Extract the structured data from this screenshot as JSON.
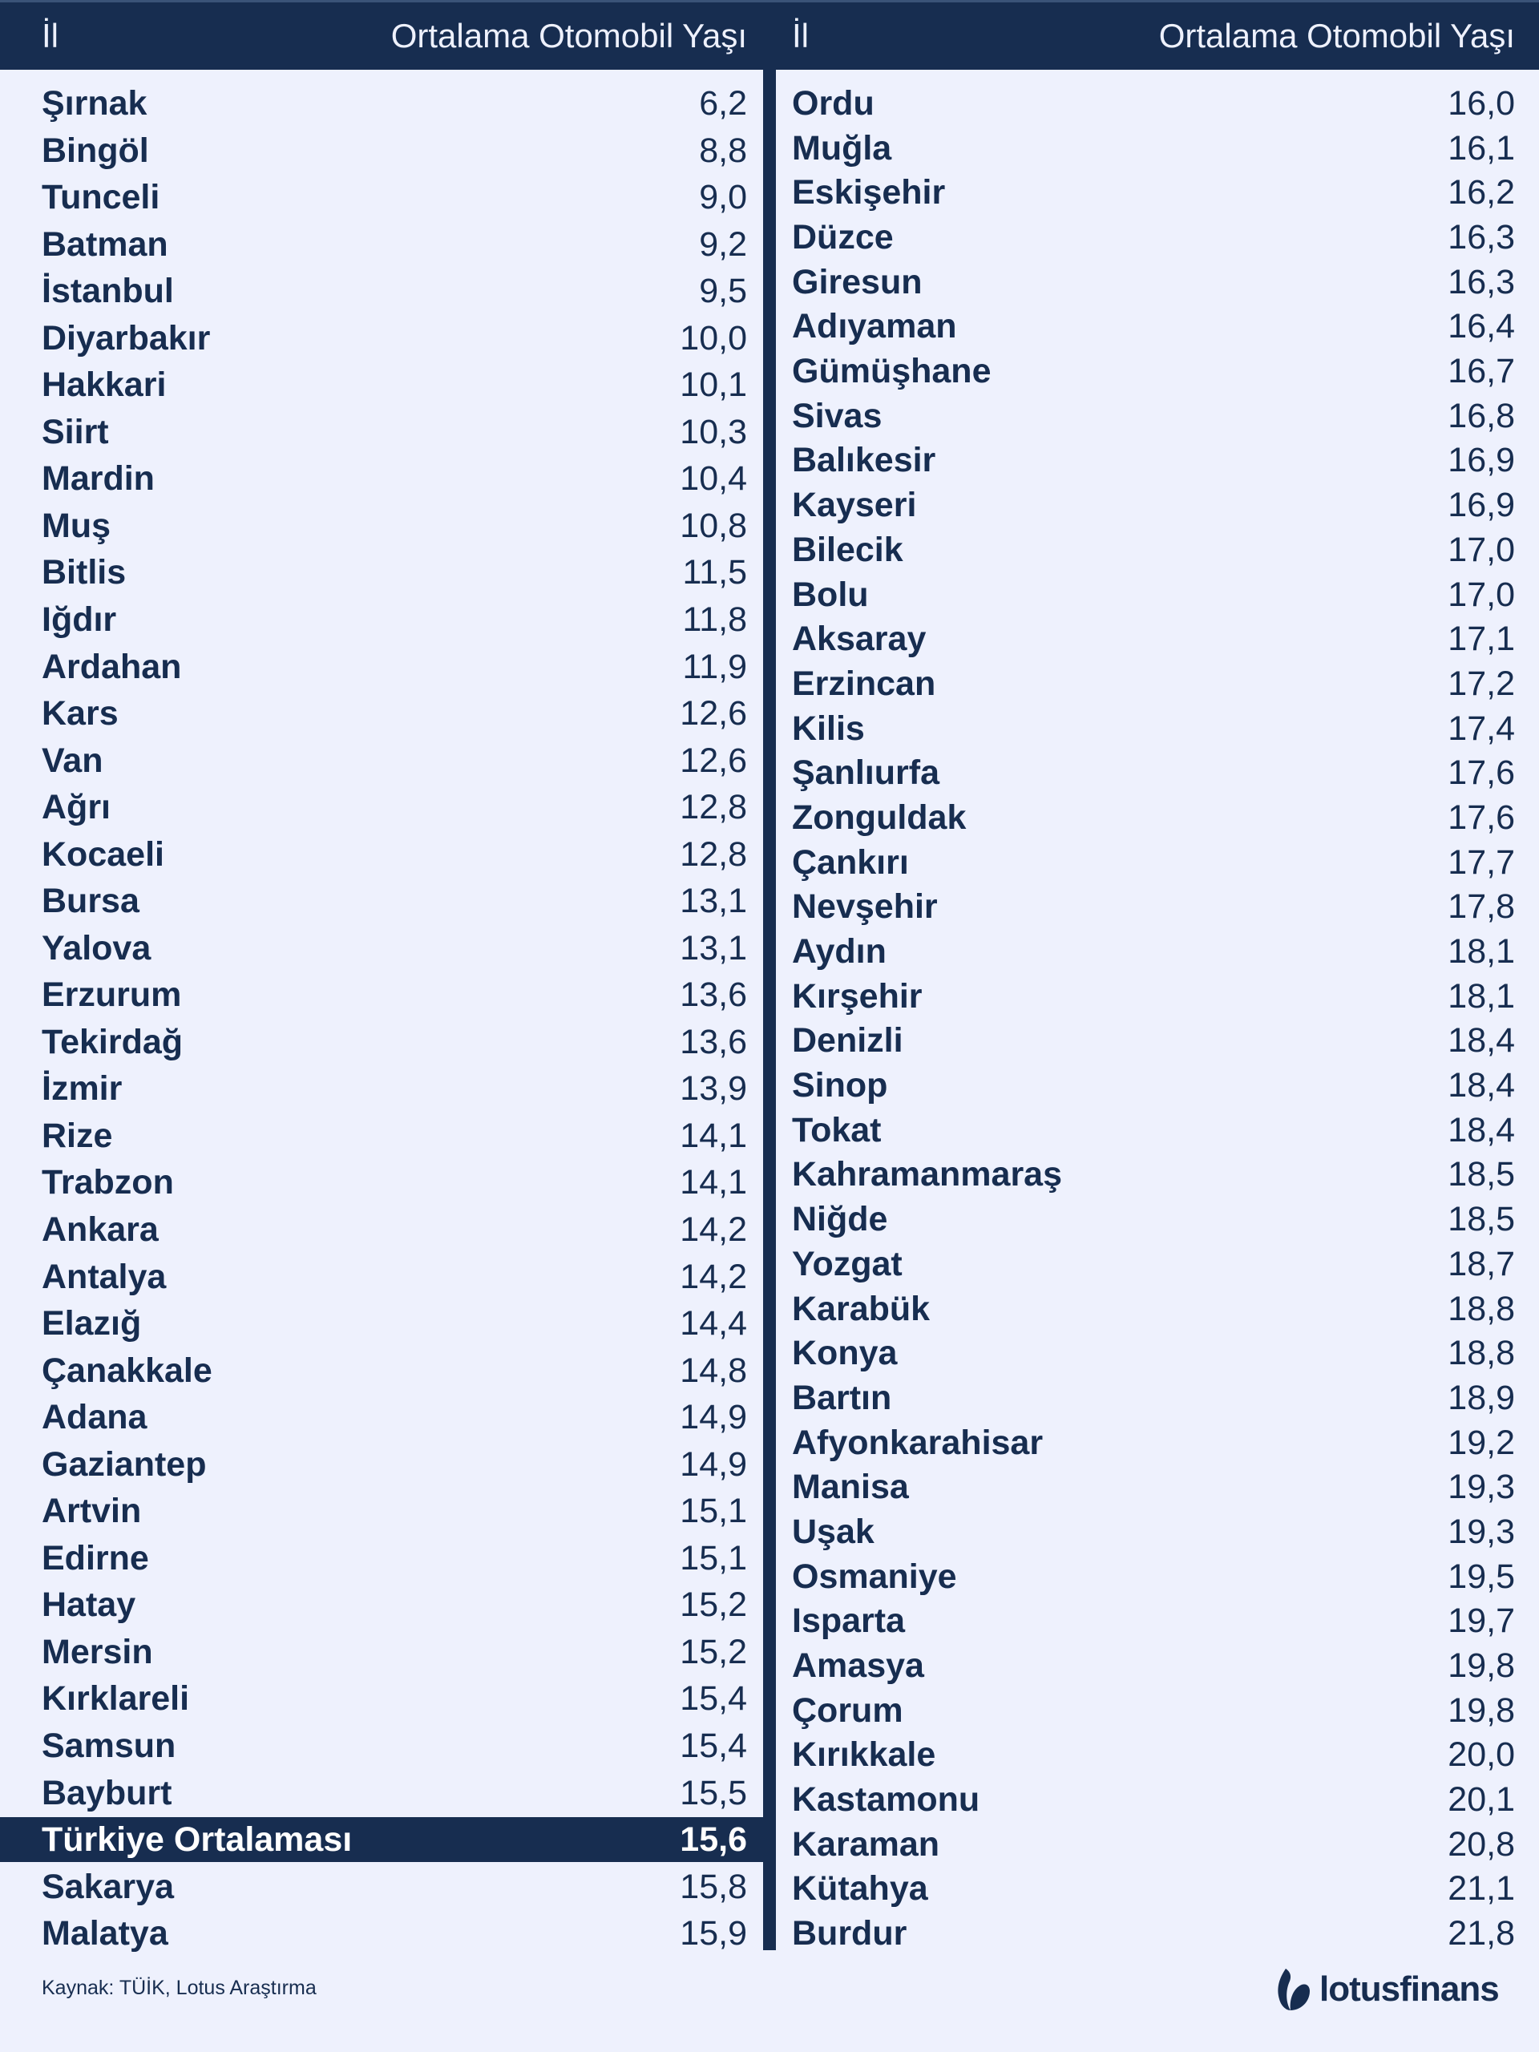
{
  "header": {
    "col_province": "İl",
    "col_value": "Ortalama Otomobil Yaşı"
  },
  "left_rows": [
    {
      "name": "Şırnak",
      "value": "6,2"
    },
    {
      "name": "Bingöl",
      "value": "8,8"
    },
    {
      "name": "Tunceli",
      "value": "9,0"
    },
    {
      "name": "Batman",
      "value": "9,2"
    },
    {
      "name": "İstanbul",
      "value": "9,5"
    },
    {
      "name": "Diyarbakır",
      "value": "10,0"
    },
    {
      "name": "Hakkari",
      "value": "10,1"
    },
    {
      "name": "Siirt",
      "value": "10,3"
    },
    {
      "name": "Mardin",
      "value": "10,4"
    },
    {
      "name": "Muş",
      "value": "10,8"
    },
    {
      "name": "Bitlis",
      "value": "11,5"
    },
    {
      "name": "Iğdır",
      "value": "11,8"
    },
    {
      "name": "Ardahan",
      "value": "11,9"
    },
    {
      "name": "Kars",
      "value": "12,6"
    },
    {
      "name": "Van",
      "value": "12,6"
    },
    {
      "name": "Ağrı",
      "value": "12,8"
    },
    {
      "name": "Kocaeli",
      "value": "12,8"
    },
    {
      "name": "Bursa",
      "value": "13,1"
    },
    {
      "name": "Yalova",
      "value": "13,1"
    },
    {
      "name": "Erzurum",
      "value": "13,6"
    },
    {
      "name": "Tekirdağ",
      "value": "13,6"
    },
    {
      "name": "İzmir",
      "value": "13,9"
    },
    {
      "name": "Rize",
      "value": "14,1"
    },
    {
      "name": "Trabzon",
      "value": "14,1"
    },
    {
      "name": "Ankara",
      "value": "14,2"
    },
    {
      "name": "Antalya",
      "value": "14,2"
    },
    {
      "name": "Elazığ",
      "value": "14,4"
    },
    {
      "name": "Çanakkale",
      "value": "14,8"
    },
    {
      "name": "Adana",
      "value": "14,9"
    },
    {
      "name": "Gaziantep",
      "value": "14,9"
    },
    {
      "name": "Artvin",
      "value": "15,1"
    },
    {
      "name": "Edirne",
      "value": "15,1"
    },
    {
      "name": "Hatay",
      "value": "15,2"
    },
    {
      "name": "Mersin",
      "value": "15,2"
    },
    {
      "name": "Kırklareli",
      "value": "15,4"
    },
    {
      "name": "Samsun",
      "value": "15,4"
    },
    {
      "name": "Bayburt",
      "value": "15,5"
    },
    {
      "name": "Türkiye Ortalaması",
      "value": "15,6",
      "highlight": true
    },
    {
      "name": "Sakarya",
      "value": "15,8"
    },
    {
      "name": "Malatya",
      "value": "15,9"
    }
  ],
  "right_rows": [
    {
      "name": "Ordu",
      "value": "16,0"
    },
    {
      "name": "Muğla",
      "value": "16,1"
    },
    {
      "name": "Eskişehir",
      "value": "16,2"
    },
    {
      "name": "Düzce",
      "value": "16,3"
    },
    {
      "name": "Giresun",
      "value": "16,3"
    },
    {
      "name": "Adıyaman",
      "value": "16,4"
    },
    {
      "name": "Gümüşhane",
      "value": "16,7"
    },
    {
      "name": "Sivas",
      "value": "16,8"
    },
    {
      "name": "Balıkesir",
      "value": "16,9"
    },
    {
      "name": "Kayseri",
      "value": "16,9"
    },
    {
      "name": "Bilecik",
      "value": "17,0"
    },
    {
      "name": "Bolu",
      "value": "17,0"
    },
    {
      "name": "Aksaray",
      "value": "17,1"
    },
    {
      "name": "Erzincan",
      "value": "17,2"
    },
    {
      "name": "Kilis",
      "value": "17,4"
    },
    {
      "name": "Şanlıurfa",
      "value": "17,6"
    },
    {
      "name": "Zonguldak",
      "value": "17,6"
    },
    {
      "name": "Çankırı",
      "value": "17,7"
    },
    {
      "name": "Nevşehir",
      "value": "17,8"
    },
    {
      "name": "Aydın",
      "value": "18,1"
    },
    {
      "name": "Kırşehir",
      "value": "18,1"
    },
    {
      "name": "Denizli",
      "value": "18,4"
    },
    {
      "name": "Sinop",
      "value": "18,4"
    },
    {
      "name": "Tokat",
      "value": "18,4"
    },
    {
      "name": "Kahramanmaraş",
      "value": "18,5"
    },
    {
      "name": "Niğde",
      "value": "18,5"
    },
    {
      "name": "Yozgat",
      "value": "18,7"
    },
    {
      "name": "Karabük",
      "value": "18,8"
    },
    {
      "name": "Konya",
      "value": "18,8"
    },
    {
      "name": "Bartın",
      "value": "18,9"
    },
    {
      "name": "Afyonkarahisar",
      "value": "19,2"
    },
    {
      "name": "Manisa",
      "value": "19,3"
    },
    {
      "name": "Uşak",
      "value": "19,3"
    },
    {
      "name": "Osmaniye",
      "value": "19,5"
    },
    {
      "name": "Isparta",
      "value": "19,7"
    },
    {
      "name": "Amasya",
      "value": "19,8"
    },
    {
      "name": "Çorum",
      "value": "19,8"
    },
    {
      "name": "Kırıkkale",
      "value": "20,0"
    },
    {
      "name": "Kastamonu",
      "value": "20,1"
    },
    {
      "name": "Karaman",
      "value": "20,8"
    },
    {
      "name": "Kütahya",
      "value": "21,1"
    },
    {
      "name": "Burdur",
      "value": "21,8"
    }
  ],
  "footer": {
    "source": "Kaynak: TÜİK, Lotus Araştırma",
    "logo_text": "lotusfinans"
  },
  "colors": {
    "primary": "#172d50",
    "background": "#eef1fd"
  }
}
